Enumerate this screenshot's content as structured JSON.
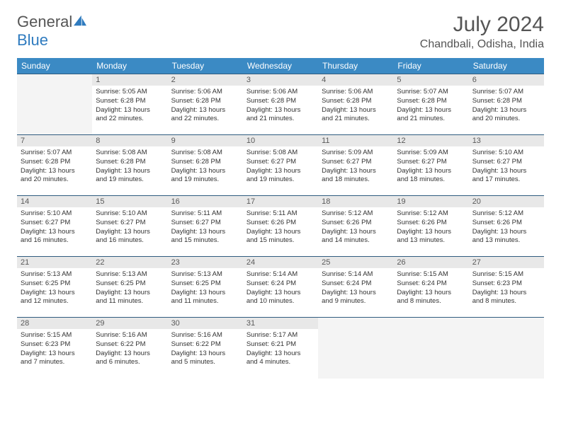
{
  "brand": {
    "general": "General",
    "blue": "Blue"
  },
  "title": "July 2024",
  "location": "Chandbali, Odisha, India",
  "colors": {
    "header_bg": "#3b8ac4",
    "header_text": "#ffffff",
    "border": "#2f5c7f",
    "daynum_bg": "#e8e8e8",
    "text": "#333333",
    "logo_blue": "#2f7bbf"
  },
  "weekdays": [
    "Sunday",
    "Monday",
    "Tuesday",
    "Wednesday",
    "Thursday",
    "Friday",
    "Saturday"
  ],
  "weeks": [
    [
      {
        "empty": true
      },
      {
        "num": "1",
        "sunrise": "Sunrise: 5:05 AM",
        "sunset": "Sunset: 6:28 PM",
        "day1": "Daylight: 13 hours",
        "day2": "and 22 minutes."
      },
      {
        "num": "2",
        "sunrise": "Sunrise: 5:06 AM",
        "sunset": "Sunset: 6:28 PM",
        "day1": "Daylight: 13 hours",
        "day2": "and 22 minutes."
      },
      {
        "num": "3",
        "sunrise": "Sunrise: 5:06 AM",
        "sunset": "Sunset: 6:28 PM",
        "day1": "Daylight: 13 hours",
        "day2": "and 21 minutes."
      },
      {
        "num": "4",
        "sunrise": "Sunrise: 5:06 AM",
        "sunset": "Sunset: 6:28 PM",
        "day1": "Daylight: 13 hours",
        "day2": "and 21 minutes."
      },
      {
        "num": "5",
        "sunrise": "Sunrise: 5:07 AM",
        "sunset": "Sunset: 6:28 PM",
        "day1": "Daylight: 13 hours",
        "day2": "and 21 minutes."
      },
      {
        "num": "6",
        "sunrise": "Sunrise: 5:07 AM",
        "sunset": "Sunset: 6:28 PM",
        "day1": "Daylight: 13 hours",
        "day2": "and 20 minutes."
      }
    ],
    [
      {
        "num": "7",
        "sunrise": "Sunrise: 5:07 AM",
        "sunset": "Sunset: 6:28 PM",
        "day1": "Daylight: 13 hours",
        "day2": "and 20 minutes."
      },
      {
        "num": "8",
        "sunrise": "Sunrise: 5:08 AM",
        "sunset": "Sunset: 6:28 PM",
        "day1": "Daylight: 13 hours",
        "day2": "and 19 minutes."
      },
      {
        "num": "9",
        "sunrise": "Sunrise: 5:08 AM",
        "sunset": "Sunset: 6:28 PM",
        "day1": "Daylight: 13 hours",
        "day2": "and 19 minutes."
      },
      {
        "num": "10",
        "sunrise": "Sunrise: 5:08 AM",
        "sunset": "Sunset: 6:27 PM",
        "day1": "Daylight: 13 hours",
        "day2": "and 19 minutes."
      },
      {
        "num": "11",
        "sunrise": "Sunrise: 5:09 AM",
        "sunset": "Sunset: 6:27 PM",
        "day1": "Daylight: 13 hours",
        "day2": "and 18 minutes."
      },
      {
        "num": "12",
        "sunrise": "Sunrise: 5:09 AM",
        "sunset": "Sunset: 6:27 PM",
        "day1": "Daylight: 13 hours",
        "day2": "and 18 minutes."
      },
      {
        "num": "13",
        "sunrise": "Sunrise: 5:10 AM",
        "sunset": "Sunset: 6:27 PM",
        "day1": "Daylight: 13 hours",
        "day2": "and 17 minutes."
      }
    ],
    [
      {
        "num": "14",
        "sunrise": "Sunrise: 5:10 AM",
        "sunset": "Sunset: 6:27 PM",
        "day1": "Daylight: 13 hours",
        "day2": "and 16 minutes."
      },
      {
        "num": "15",
        "sunrise": "Sunrise: 5:10 AM",
        "sunset": "Sunset: 6:27 PM",
        "day1": "Daylight: 13 hours",
        "day2": "and 16 minutes."
      },
      {
        "num": "16",
        "sunrise": "Sunrise: 5:11 AM",
        "sunset": "Sunset: 6:27 PM",
        "day1": "Daylight: 13 hours",
        "day2": "and 15 minutes."
      },
      {
        "num": "17",
        "sunrise": "Sunrise: 5:11 AM",
        "sunset": "Sunset: 6:26 PM",
        "day1": "Daylight: 13 hours",
        "day2": "and 15 minutes."
      },
      {
        "num": "18",
        "sunrise": "Sunrise: 5:12 AM",
        "sunset": "Sunset: 6:26 PM",
        "day1": "Daylight: 13 hours",
        "day2": "and 14 minutes."
      },
      {
        "num": "19",
        "sunrise": "Sunrise: 5:12 AM",
        "sunset": "Sunset: 6:26 PM",
        "day1": "Daylight: 13 hours",
        "day2": "and 13 minutes."
      },
      {
        "num": "20",
        "sunrise": "Sunrise: 5:12 AM",
        "sunset": "Sunset: 6:26 PM",
        "day1": "Daylight: 13 hours",
        "day2": "and 13 minutes."
      }
    ],
    [
      {
        "num": "21",
        "sunrise": "Sunrise: 5:13 AM",
        "sunset": "Sunset: 6:25 PM",
        "day1": "Daylight: 13 hours",
        "day2": "and 12 minutes."
      },
      {
        "num": "22",
        "sunrise": "Sunrise: 5:13 AM",
        "sunset": "Sunset: 6:25 PM",
        "day1": "Daylight: 13 hours",
        "day2": "and 11 minutes."
      },
      {
        "num": "23",
        "sunrise": "Sunrise: 5:13 AM",
        "sunset": "Sunset: 6:25 PM",
        "day1": "Daylight: 13 hours",
        "day2": "and 11 minutes."
      },
      {
        "num": "24",
        "sunrise": "Sunrise: 5:14 AM",
        "sunset": "Sunset: 6:24 PM",
        "day1": "Daylight: 13 hours",
        "day2": "and 10 minutes."
      },
      {
        "num": "25",
        "sunrise": "Sunrise: 5:14 AM",
        "sunset": "Sunset: 6:24 PM",
        "day1": "Daylight: 13 hours",
        "day2": "and 9 minutes."
      },
      {
        "num": "26",
        "sunrise": "Sunrise: 5:15 AM",
        "sunset": "Sunset: 6:24 PM",
        "day1": "Daylight: 13 hours",
        "day2": "and 8 minutes."
      },
      {
        "num": "27",
        "sunrise": "Sunrise: 5:15 AM",
        "sunset": "Sunset: 6:23 PM",
        "day1": "Daylight: 13 hours",
        "day2": "and 8 minutes."
      }
    ],
    [
      {
        "num": "28",
        "sunrise": "Sunrise: 5:15 AM",
        "sunset": "Sunset: 6:23 PM",
        "day1": "Daylight: 13 hours",
        "day2": "and 7 minutes."
      },
      {
        "num": "29",
        "sunrise": "Sunrise: 5:16 AM",
        "sunset": "Sunset: 6:22 PM",
        "day1": "Daylight: 13 hours",
        "day2": "and 6 minutes."
      },
      {
        "num": "30",
        "sunrise": "Sunrise: 5:16 AM",
        "sunset": "Sunset: 6:22 PM",
        "day1": "Daylight: 13 hours",
        "day2": "and 5 minutes."
      },
      {
        "num": "31",
        "sunrise": "Sunrise: 5:17 AM",
        "sunset": "Sunset: 6:21 PM",
        "day1": "Daylight: 13 hours",
        "day2": "and 4 minutes."
      },
      {
        "empty": true
      },
      {
        "empty": true
      },
      {
        "empty": true
      }
    ]
  ]
}
